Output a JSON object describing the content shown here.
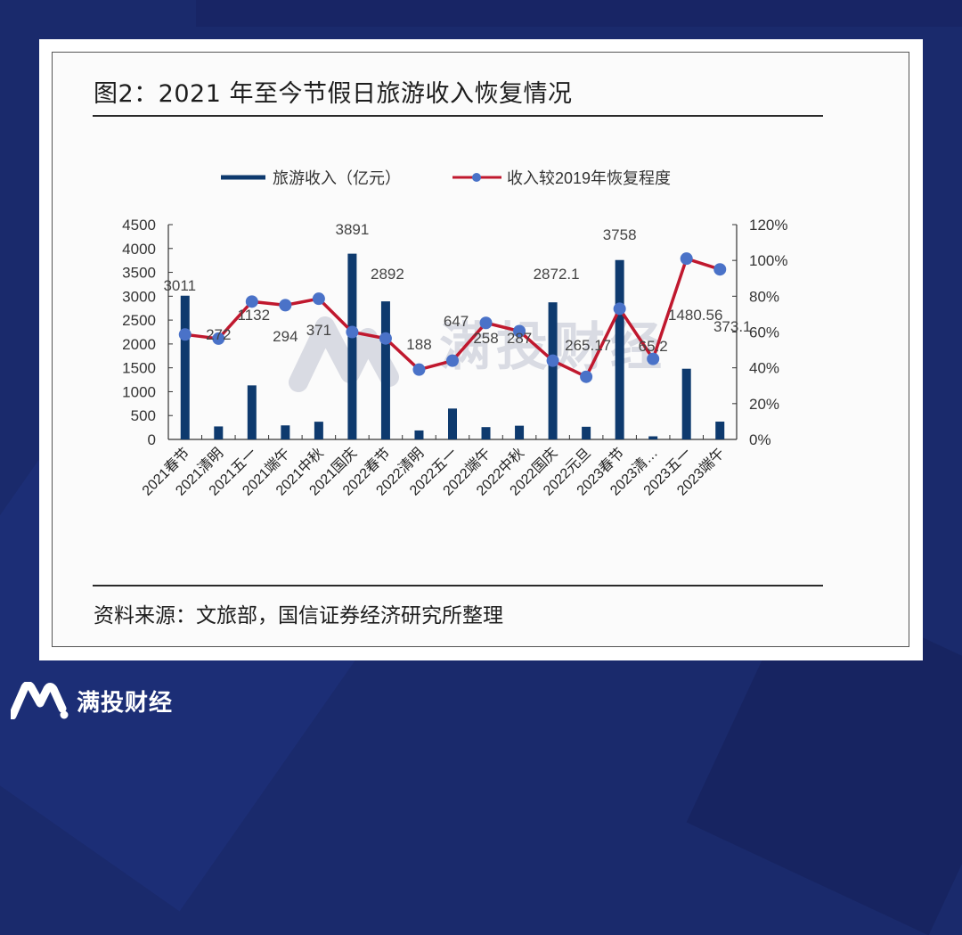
{
  "figure": {
    "title": "图2：2021 年至今节假日旅游收入恢复情况",
    "source": "资料来源：文旅部，国信证券经济研究所整理"
  },
  "brand": {
    "name": "满投财经",
    "watermark": "满投财经"
  },
  "colors": {
    "background": "#1a2a6c",
    "bar": "#0e3a6e",
    "line": "#c0182e",
    "marker": "#4a72c8",
    "watermark": "#d9dbe3"
  },
  "chart_data": {
    "type": "bar+line",
    "title": "图2：2021 年至今节假日旅游收入恢复情况",
    "legend_position": "top",
    "grid": false,
    "categories": [
      "2021春节",
      "2021清明",
      "2021五一",
      "2021端午",
      "2021中秋",
      "2021国庆",
      "2022春节",
      "2022清明",
      "2022五一",
      "2022端午",
      "2022中秋",
      "2022国庆",
      "2022元旦",
      "2023春节",
      "2023清…",
      "2023五一",
      "2023端午"
    ],
    "series": [
      {
        "name": "旅游收入（亿元）",
        "type": "bar",
        "axis": "left",
        "values": [
          3011,
          272,
          1132,
          294,
          371,
          3891,
          2892,
          188,
          647,
          258,
          287,
          2872.1,
          265.17,
          3758,
          65.2,
          1480.56,
          373.1
        ],
        "labels": [
          "3011",
          "272",
          "1132",
          "294",
          "371",
          "3891",
          "2892",
          "188",
          "647",
          "258",
          "287",
          "2872.1",
          "265.17",
          "3758",
          "65.2",
          "1480.56",
          "373.1"
        ]
      },
      {
        "name": "收入较2019年恢复程度",
        "type": "line",
        "axis": "right",
        "unit": "%",
        "values": [
          58.6,
          56.3,
          77.0,
          75.0,
          78.6,
          60.0,
          56.4,
          39.0,
          44.0,
          65.1,
          60.5,
          44.0,
          35.0,
          73.0,
          45.0,
          101.0,
          95.0
        ]
      }
    ],
    "y_left": {
      "min": 0,
      "max": 4500,
      "ticks": [
        "0",
        "500",
        "1000",
        "1500",
        "2000",
        "2500",
        "3000",
        "3500",
        "4000",
        "4500"
      ]
    },
    "y_right": {
      "min": 0,
      "max": 120,
      "ticks": [
        "0%",
        "20%",
        "40%",
        "60%",
        "80%",
        "100%",
        "120%"
      ]
    },
    "xlabel": "",
    "ylabel": ""
  }
}
